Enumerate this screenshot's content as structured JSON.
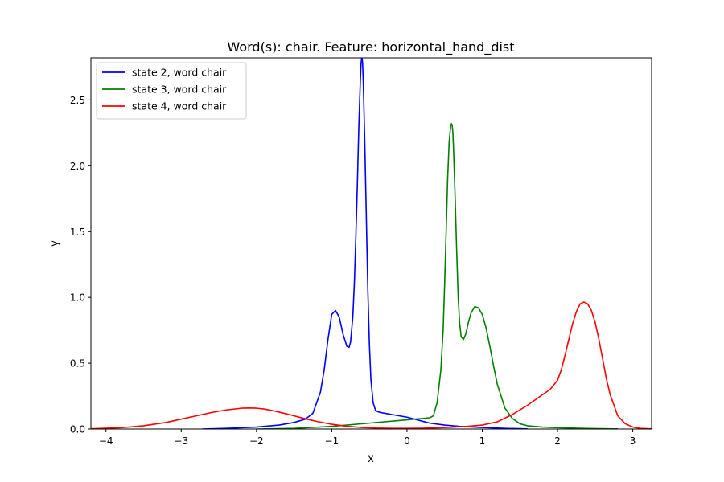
{
  "chart_data": {
    "type": "line",
    "title": "Word(s): chair. Feature: horizontal_hand_dist",
    "xlabel": "x",
    "ylabel": "y",
    "xlim": [
      -4.2,
      3.25
    ],
    "ylim": [
      0,
      2.82
    ],
    "x_ticks": [
      -4,
      -3,
      -2,
      -1,
      0,
      1,
      2,
      3
    ],
    "x_tick_labels": [
      "−4",
      "−3",
      "−2",
      "−1",
      "0",
      "1",
      "2",
      "3"
    ],
    "y_ticks": [
      0.0,
      0.5,
      1.0,
      1.5,
      2.0,
      2.5
    ],
    "y_tick_labels": [
      "0.0",
      "0.5",
      "1.0",
      "1.5",
      "2.0",
      "2.5"
    ],
    "grid": false,
    "legend_position": "top-left",
    "series": [
      {
        "name": "state 2, word chair",
        "color": "#0000ff",
        "x": [
          -2.72,
          -2.4,
          -2.0,
          -1.7,
          -1.5,
          -1.35,
          -1.25,
          -1.15,
          -1.1,
          -1.05,
          -1.0,
          -0.95,
          -0.9,
          -0.85,
          -0.8,
          -0.77,
          -0.75,
          -0.72,
          -0.7,
          -0.68,
          -0.66,
          -0.64,
          -0.62,
          -0.61,
          -0.6,
          -0.59,
          -0.58,
          -0.56,
          -0.54,
          -0.52,
          -0.5,
          -0.48,
          -0.45,
          -0.42,
          -0.4,
          -0.38,
          -0.35,
          -0.3,
          -0.2,
          -0.1,
          0.0,
          0.1,
          0.2,
          0.3,
          0.5,
          0.7,
          1.0,
          1.3,
          1.6
        ],
        "y": [
          0.0,
          0.005,
          0.015,
          0.03,
          0.05,
          0.075,
          0.12,
          0.28,
          0.45,
          0.68,
          0.87,
          0.9,
          0.85,
          0.72,
          0.63,
          0.62,
          0.66,
          0.85,
          1.1,
          1.45,
          1.85,
          2.3,
          2.65,
          2.78,
          2.83,
          2.78,
          2.62,
          2.15,
          1.6,
          1.05,
          0.65,
          0.38,
          0.2,
          0.145,
          0.135,
          0.13,
          0.125,
          0.12,
          0.11,
          0.1,
          0.09,
          0.075,
          0.06,
          0.045,
          0.03,
          0.02,
          0.012,
          0.005,
          0.001
        ]
      },
      {
        "name": "state 3, word chair",
        "color": "#008000",
        "x": [
          -2.0,
          -1.5,
          -1.0,
          -0.5,
          0.0,
          0.2,
          0.3,
          0.35,
          0.4,
          0.45,
          0.48,
          0.5,
          0.52,
          0.54,
          0.56,
          0.58,
          0.59,
          0.6,
          0.61,
          0.62,
          0.64,
          0.66,
          0.68,
          0.7,
          0.72,
          0.75,
          0.78,
          0.82,
          0.85,
          0.9,
          0.95,
          1.0,
          1.05,
          1.1,
          1.15,
          1.2,
          1.3,
          1.4,
          1.5,
          1.6,
          1.8,
          2.0,
          2.4,
          2.8
        ],
        "y": [
          0.0,
          0.005,
          0.02,
          0.045,
          0.07,
          0.08,
          0.085,
          0.1,
          0.2,
          0.45,
          0.75,
          1.1,
          1.5,
          1.9,
          2.18,
          2.3,
          2.32,
          2.31,
          2.25,
          2.1,
          1.75,
          1.35,
          1.0,
          0.8,
          0.7,
          0.68,
          0.72,
          0.82,
          0.88,
          0.93,
          0.92,
          0.87,
          0.77,
          0.63,
          0.48,
          0.34,
          0.16,
          0.08,
          0.04,
          0.025,
          0.015,
          0.01,
          0.004,
          0.001
        ]
      },
      {
        "name": "state 4, word chair",
        "color": "#ff0000",
        "x": [
          -4.2,
          -3.8,
          -3.5,
          -3.2,
          -3.0,
          -2.8,
          -2.6,
          -2.4,
          -2.2,
          -2.1,
          -2.0,
          -1.9,
          -1.8,
          -1.6,
          -1.4,
          -1.2,
          -1.0,
          -0.8,
          -0.6,
          -0.4,
          -0.2,
          0.0,
          0.2,
          0.4,
          0.6,
          0.8,
          1.0,
          1.2,
          1.4,
          1.6,
          1.8,
          1.9,
          2.0,
          2.05,
          2.1,
          2.15,
          2.2,
          2.25,
          2.3,
          2.35,
          2.4,
          2.45,
          2.5,
          2.55,
          2.6,
          2.65,
          2.7,
          2.8,
          2.9,
          3.0,
          3.1,
          3.25
        ],
        "y": [
          0.002,
          0.01,
          0.025,
          0.05,
          0.075,
          0.1,
          0.125,
          0.145,
          0.158,
          0.16,
          0.158,
          0.152,
          0.142,
          0.115,
          0.085,
          0.058,
          0.036,
          0.021,
          0.012,
          0.007,
          0.005,
          0.005,
          0.006,
          0.009,
          0.014,
          0.02,
          0.03,
          0.055,
          0.11,
          0.18,
          0.26,
          0.3,
          0.37,
          0.45,
          0.56,
          0.68,
          0.8,
          0.89,
          0.95,
          0.965,
          0.95,
          0.9,
          0.81,
          0.68,
          0.53,
          0.38,
          0.26,
          0.1,
          0.04,
          0.015,
          0.005,
          0.001
        ]
      }
    ]
  }
}
